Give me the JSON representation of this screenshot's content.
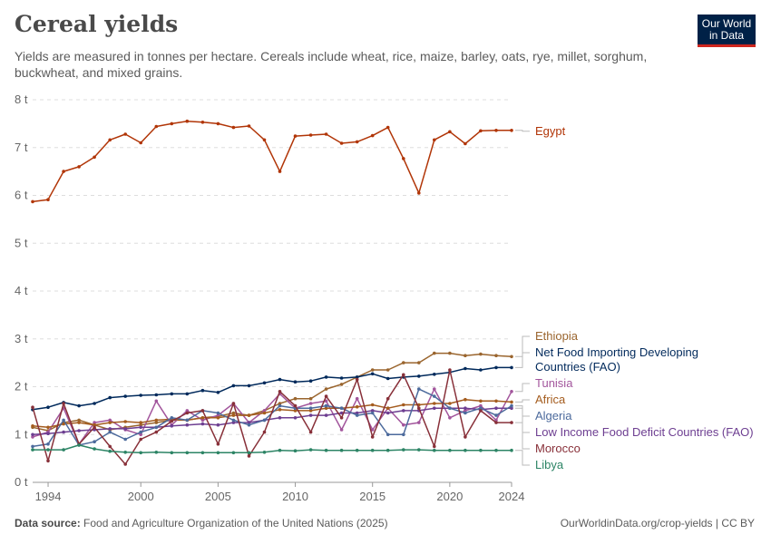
{
  "header": {
    "title": "Cereal yields",
    "subtitle": "Yields are measured in tonnes per hectare. Cereals include wheat, rice, maize, barley, oats, rye, millet, sorghum, buckwheat, and mixed grains.",
    "logo_line1": "Our World",
    "logo_line2": "in Data"
  },
  "footer": {
    "source_label": "Data source:",
    "source_text": "Food and Agriculture Organization of the United Nations (2025)",
    "credit": "OurWorldinData.org/crop-yields | CC BY"
  },
  "colors": {
    "Egypt": "#b13507",
    "Ethiopia": "#9a652e",
    "Net Food Importing Developing Countries (FAO)": "#00295b",
    "Tunisia": "#a2559c",
    "Africa": "#a45c1e",
    "Low Income Food Deficit Countries (FAO)": "#6d3e91",
    "Algeria": "#4c6a9c",
    "Morocco": "#883039",
    "Libya": "#2c8465"
  },
  "chart_data": {
    "type": "line",
    "title": "Cereal yields",
    "ylabel": "",
    "xlabel": "",
    "ylim": [
      0,
      8
    ],
    "xlim": [
      1993,
      2024
    ],
    "y_ticks": [
      0,
      1,
      2,
      3,
      4,
      5,
      6,
      7,
      8
    ],
    "y_tick_labels": [
      "0 t",
      "1 t",
      "2 t",
      "3 t",
      "4 t",
      "5 t",
      "6 t",
      "7 t",
      "8 t"
    ],
    "x_ticks": [
      1994,
      2000,
      2005,
      2010,
      2015,
      2020,
      2024
    ],
    "x_tick_labels": [
      "1994",
      "2000",
      "2005",
      "2010",
      "2015",
      "2020",
      "2024"
    ],
    "grid": "horizontal dashed",
    "legend": "right, labels at line ends",
    "x": [
      1993,
      1994,
      1995,
      1996,
      1997,
      1998,
      1999,
      2000,
      2001,
      2002,
      2003,
      2004,
      2005,
      2006,
      2007,
      2008,
      2009,
      2010,
      2011,
      2012,
      2013,
      2014,
      2015,
      2016,
      2017,
      2018,
      2019,
      2020,
      2021,
      2022,
      2023,
      2024
    ],
    "series": [
      {
        "name": "Egypt",
        "label_lines": [
          "Egypt"
        ],
        "values": [
          5.87,
          5.91,
          6.5,
          6.6,
          6.8,
          7.16,
          7.28,
          7.1,
          7.44,
          7.5,
          7.55,
          7.53,
          7.5,
          7.42,
          7.45,
          7.16,
          6.5,
          7.24,
          7.26,
          7.28,
          7.09,
          7.12,
          7.25,
          7.42,
          6.77,
          6.05,
          7.16,
          7.33,
          7.08,
          7.35,
          7.36,
          7.36
        ]
      },
      {
        "name": "Ethiopia",
        "label_lines": [
          "Ethiopia"
        ],
        "values": [
          1.15,
          1.08,
          1.25,
          1.3,
          1.2,
          1.1,
          1.15,
          1.2,
          1.25,
          1.3,
          1.3,
          1.35,
          1.38,
          1.45,
          1.4,
          1.5,
          1.65,
          1.75,
          1.75,
          1.95,
          2.05,
          2.2,
          2.35,
          2.35,
          2.5,
          2.5,
          2.7,
          2.7,
          2.65,
          2.68,
          2.65,
          2.63
        ]
      },
      {
        "name": "Net Food Importing Developing Countries (FAO)",
        "label_lines": [
          "Net Food Importing Developing",
          "Countries (FAO)"
        ],
        "values": [
          1.52,
          1.57,
          1.67,
          1.6,
          1.65,
          1.77,
          1.8,
          1.82,
          1.83,
          1.85,
          1.85,
          1.92,
          1.88,
          2.02,
          2.02,
          2.08,
          2.15,
          2.1,
          2.12,
          2.2,
          2.18,
          2.2,
          2.27,
          2.17,
          2.2,
          2.22,
          2.26,
          2.3,
          2.38,
          2.35,
          2.4,
          2.4
        ]
      },
      {
        "name": "Tunisia",
        "label_lines": [
          "Tunisia"
        ],
        "values": [
          0.95,
          1.05,
          1.55,
          0.8,
          1.25,
          1.3,
          1.1,
          1.0,
          1.7,
          1.2,
          1.5,
          1.3,
          1.4,
          1.65,
          1.25,
          1.5,
          1.85,
          1.55,
          1.65,
          1.7,
          1.1,
          1.75,
          1.1,
          1.55,
          1.2,
          1.25,
          1.95,
          1.35,
          1.5,
          1.6,
          1.3,
          1.9
        ]
      },
      {
        "name": "Africa",
        "label_lines": [
          "Africa"
        ],
        "values": [
          1.18,
          1.15,
          1.22,
          1.25,
          1.2,
          1.25,
          1.27,
          1.25,
          1.3,
          1.32,
          1.3,
          1.35,
          1.35,
          1.4,
          1.4,
          1.45,
          1.52,
          1.5,
          1.5,
          1.55,
          1.55,
          1.58,
          1.62,
          1.55,
          1.62,
          1.62,
          1.65,
          1.65,
          1.73,
          1.7,
          1.7,
          1.68
        ]
      },
      {
        "name": "Low Income Food Deficit Countries (FAO)",
        "label_lines": [
          "Low Income Food Deficit Countries (FAO)"
        ],
        "values": [
          1.0,
          1.02,
          1.05,
          1.08,
          1.1,
          1.12,
          1.12,
          1.15,
          1.15,
          1.18,
          1.2,
          1.22,
          1.2,
          1.25,
          1.25,
          1.3,
          1.35,
          1.35,
          1.4,
          1.4,
          1.45,
          1.45,
          1.5,
          1.45,
          1.5,
          1.5,
          1.55,
          1.55,
          1.55,
          1.52,
          1.55,
          1.55
        ]
      },
      {
        "name": "Algeria",
        "label_lines": [
          "Algeria"
        ],
        "values": [
          0.75,
          0.8,
          1.3,
          0.78,
          0.85,
          1.05,
          0.9,
          1.05,
          1.15,
          1.35,
          1.3,
          1.5,
          1.45,
          1.3,
          1.2,
          1.3,
          1.6,
          1.55,
          1.55,
          1.6,
          1.55,
          1.4,
          1.45,
          1.0,
          1.0,
          1.95,
          1.8,
          1.55,
          1.45,
          1.55,
          1.4,
          1.6
        ]
      },
      {
        "name": "Morocco",
        "label_lines": [
          "Morocco"
        ],
        "values": [
          1.57,
          0.45,
          1.65,
          0.8,
          1.15,
          0.75,
          0.38,
          0.9,
          1.05,
          1.28,
          1.45,
          1.5,
          0.8,
          1.65,
          0.55,
          1.05,
          1.9,
          1.6,
          1.05,
          1.8,
          1.35,
          2.15,
          0.95,
          1.75,
          2.25,
          1.55,
          0.75,
          2.35,
          0.95,
          1.5,
          1.25,
          1.25
        ]
      },
      {
        "name": "Libya",
        "label_lines": [
          "Libya"
        ],
        "values": [
          0.68,
          0.68,
          0.68,
          0.78,
          0.7,
          0.65,
          0.63,
          0.62,
          0.63,
          0.62,
          0.62,
          0.62,
          0.62,
          0.62,
          0.62,
          0.63,
          0.67,
          0.66,
          0.68,
          0.67,
          0.67,
          0.67,
          0.67,
          0.67,
          0.68,
          0.68,
          0.67,
          0.67,
          0.67,
          0.67,
          0.67,
          0.67
        ]
      }
    ]
  }
}
